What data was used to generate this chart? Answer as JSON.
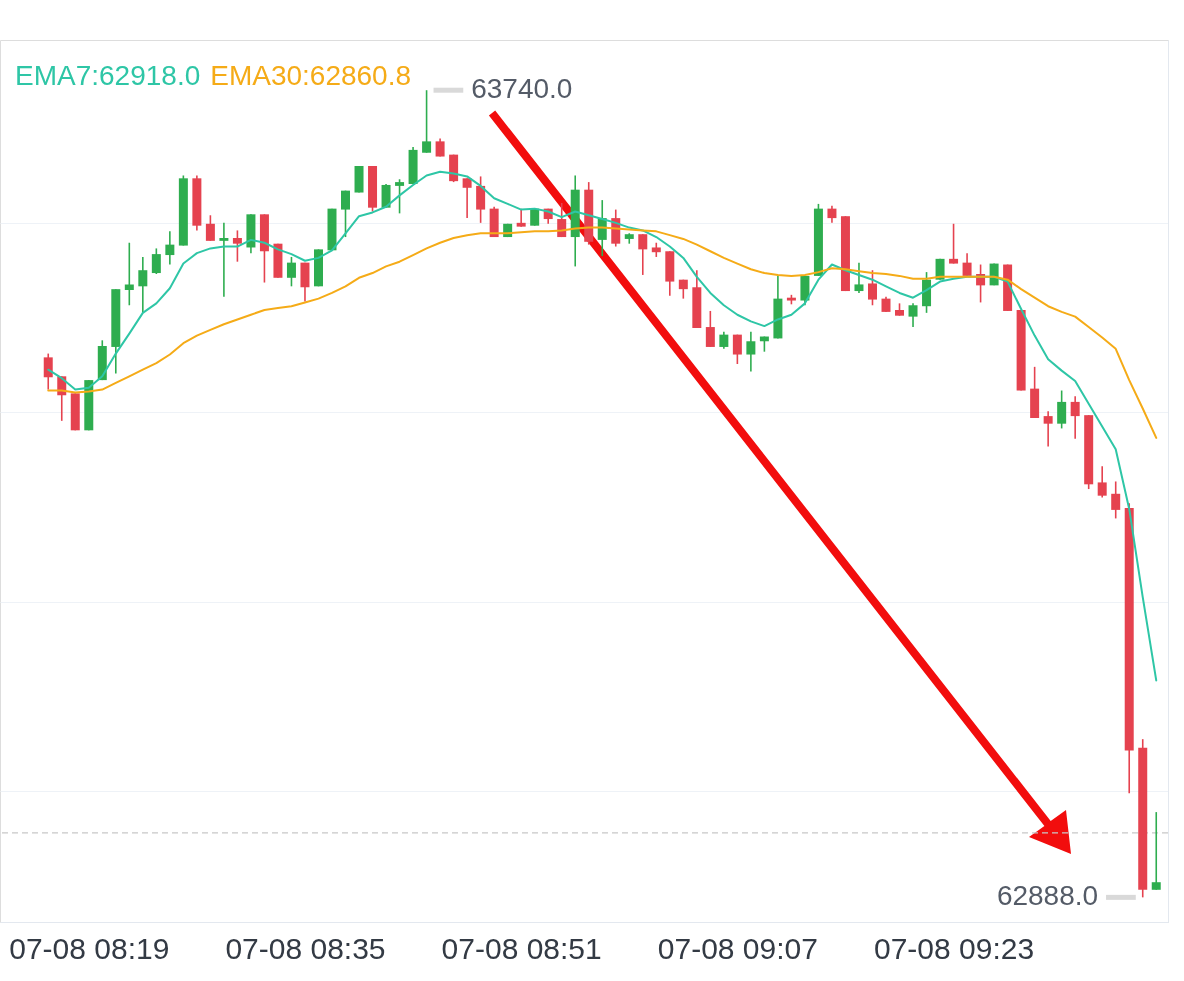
{
  "chart_data": {
    "type": "candlestick",
    "categories": [
      null,
      null,
      null,
      "07-08 08:19",
      null,
      null,
      null,
      null,
      null,
      null,
      null,
      null,
      null,
      null,
      null,
      null,
      null,
      null,
      null,
      "07-08 08:35",
      null,
      null,
      null,
      null,
      null,
      null,
      null,
      null,
      null,
      null,
      null,
      null,
      null,
      null,
      null,
      "07-08 08:51",
      null,
      null,
      null,
      null,
      null,
      null,
      null,
      null,
      null,
      null,
      null,
      null,
      null,
      null,
      null,
      "07-08 09:07",
      null,
      null,
      null,
      null,
      null,
      null,
      null,
      null,
      null,
      null,
      null,
      null,
      null,
      null,
      null,
      "07-08 09:23",
      null,
      null,
      null,
      null,
      null,
      null,
      null,
      null,
      null,
      null,
      null,
      null,
      null,
      null,
      null
    ],
    "ohlc": [
      [
        63458,
        63462,
        63424,
        63437
      ],
      [
        63438,
        63438,
        63391,
        63418
      ],
      [
        63420,
        63420,
        63381,
        63381
      ],
      [
        63381,
        63434,
        63381,
        63434
      ],
      [
        63434,
        63476,
        63434,
        63470
      ],
      [
        63469,
        63530,
        63441,
        63530
      ],
      [
        63529,
        63579,
        63513,
        63535
      ],
      [
        63533,
        63564,
        63505,
        63550
      ],
      [
        63547,
        63573,
        63546,
        63567
      ],
      [
        63566,
        63591,
        63556,
        63577
      ],
      [
        63576,
        63650,
        63576,
        63647
      ],
      [
        63647,
        63650,
        63592,
        63597
      ],
      [
        63599,
        63608,
        63581,
        63581
      ],
      [
        63581,
        63600,
        63522,
        63584
      ],
      [
        63584,
        63592,
        63559,
        63578
      ],
      [
        63574,
        63609,
        63568,
        63609
      ],
      [
        63609,
        63609,
        63537,
        63570
      ],
      [
        63578,
        63578,
        63542,
        63542
      ],
      [
        63542,
        63564,
        63533,
        63558
      ],
      [
        63558,
        63558,
        63517,
        63532
      ],
      [
        63533,
        63572,
        63533,
        63572
      ],
      [
        63571,
        63615,
        63571,
        63615
      ],
      [
        63614,
        63634,
        63585,
        63634
      ],
      [
        63632,
        63660,
        63632,
        63660
      ],
      [
        63660,
        63660,
        63612,
        63616
      ],
      [
        63616,
        63641,
        63616,
        63640
      ],
      [
        63639,
        63646,
        63610,
        63643
      ],
      [
        63641,
        63680,
        63641,
        63677
      ],
      [
        63674,
        63740,
        63674,
        63686
      ],
      [
        63686,
        63689,
        63670,
        63670
      ],
      [
        63672,
        63672,
        63643,
        63644
      ],
      [
        63647,
        63647,
        63605,
        63637
      ],
      [
        63639,
        63649,
        63600,
        63614
      ],
      [
        63615,
        63617,
        63585,
        63585
      ],
      [
        63585,
        63599,
        63585,
        63599
      ],
      [
        63600,
        63615,
        63596,
        63596
      ],
      [
        63597,
        63615,
        63597,
        63615
      ],
      [
        63615,
        63615,
        63599,
        63604
      ],
      [
        63604,
        63621,
        63585,
        63585
      ],
      [
        63585,
        63650,
        63554,
        63635
      ],
      [
        63635,
        63643,
        63577,
        63580
      ],
      [
        63582,
        63624,
        63565,
        63605
      ],
      [
        63605,
        63614,
        63575,
        63578
      ],
      [
        63583,
        63589,
        63578,
        63588
      ],
      [
        63588,
        63588,
        63545,
        63572
      ],
      [
        63574,
        63579,
        63564,
        63569
      ],
      [
        63570,
        63570,
        63523,
        63538
      ],
      [
        63540,
        63540,
        63520,
        63530
      ],
      [
        63532,
        63550,
        63489,
        63489
      ],
      [
        63490,
        63507,
        63469,
        63469
      ],
      [
        63469,
        63485,
        63467,
        63482
      ],
      [
        63482,
        63482,
        63451,
        63461
      ],
      [
        63461,
        63485,
        63443,
        63475
      ],
      [
        63475,
        63480,
        63464,
        63480
      ],
      [
        63478,
        63544,
        63478,
        63520
      ],
      [
        63521,
        63524,
        63514,
        63518
      ],
      [
        63518,
        63544,
        63513,
        63544
      ],
      [
        63544,
        63620,
        63544,
        63615
      ],
      [
        63615,
        63618,
        63600,
        63605
      ],
      [
        63607,
        63607,
        63528,
        63528
      ],
      [
        63528,
        63558,
        63526,
        63535
      ],
      [
        63536,
        63550,
        63513,
        63519
      ],
      [
        63520,
        63522,
        63506,
        63506
      ],
      [
        63508,
        63515,
        63502,
        63502
      ],
      [
        63501,
        63515,
        63490,
        63513
      ],
      [
        63512,
        63548,
        63505,
        63540
      ],
      [
        63540,
        63562,
        63540,
        63562
      ],
      [
        63562,
        63599,
        63557,
        63557
      ],
      [
        63558,
        63568,
        63544,
        63544
      ],
      [
        63546,
        63556,
        63516,
        63534
      ],
      [
        63534,
        63557,
        63534,
        63557
      ],
      [
        63556,
        63556,
        63507,
        63507
      ],
      [
        63508,
        63508,
        63423,
        63423
      ],
      [
        63425,
        63448,
        63394,
        63394
      ],
      [
        63396,
        63401,
        63364,
        63388
      ],
      [
        63388,
        63423,
        63383,
        63411
      ],
      [
        63411,
        63417,
        63372,
        63396
      ],
      [
        63397,
        63397,
        63319,
        63324
      ],
      [
        63326,
        63343,
        63310,
        63312
      ],
      [
        63314,
        63327,
        63288,
        63297
      ],
      [
        63299,
        63304,
        62998,
        63043
      ],
      [
        63046,
        63055,
        62888,
        62896
      ],
      [
        62896,
        62978,
        62896,
        62904
      ]
    ],
    "colors": [
      "#e5424f",
      "#e5424f",
      "#e5424f",
      "#2ead4f",
      "#2ead4f",
      "#2ead4f",
      "#2ead4f",
      "#2ead4f",
      "#2ead4f",
      "#2ead4f",
      "#2ead4f",
      "#e5424f",
      "#e5424f",
      "#2ead4f",
      "#e5424f",
      "#2ead4f",
      "#e5424f",
      "#e5424f",
      "#2ead4f",
      "#e5424f",
      "#2ead4f",
      "#2ead4f",
      "#2ead4f",
      "#2ead4f",
      "#e5424f",
      "#2ead4f",
      "#2ead4f",
      "#2ead4f",
      "#2ead4f",
      "#e5424f",
      "#e5424f",
      "#e5424f",
      "#e5424f",
      "#e5424f",
      "#2ead4f",
      "#e5424f",
      "#2ead4f",
      "#e5424f",
      "#e5424f",
      "#2ead4f",
      "#e5424f",
      "#2ead4f",
      "#e5424f",
      "#2ead4f",
      "#e5424f",
      "#e5424f",
      "#e5424f",
      "#e5424f",
      "#e5424f",
      "#e5424f",
      "#2ead4f",
      "#e5424f",
      "#2ead4f",
      "#2ead4f",
      "#2ead4f",
      "#e5424f",
      "#2ead4f",
      "#2ead4f",
      "#e5424f",
      "#e5424f",
      "#2ead4f",
      "#e5424f",
      "#e5424f",
      "#e5424f",
      "#2ead4f",
      "#2ead4f",
      "#2ead4f",
      "#e5424f",
      "#e5424f",
      "#e5424f",
      "#2ead4f",
      "#e5424f",
      "#e5424f",
      "#e5424f",
      "#e5424f",
      "#2ead4f",
      "#e5424f",
      "#e5424f",
      "#e5424f",
      "#e5424f",
      "#e5424f",
      "#e5424f",
      "#2ead4f"
    ],
    "series": [
      {
        "name": "EMA7:62918.0",
        "type": "line",
        "color": "#2ec6a6",
        "values": [
          63445,
          63436,
          63424,
          63426,
          63438,
          63462,
          63483,
          63505,
          63515,
          63531,
          63557,
          63568,
          63573,
          63575,
          63575,
          63582,
          63579,
          63572,
          63567,
          63560,
          63563,
          63571,
          63589,
          63607,
          63611,
          63617,
          63629,
          63640,
          63650,
          63654,
          63652,
          63649,
          63639,
          63626,
          63620,
          63614,
          63615,
          63612,
          63606,
          63612,
          63608,
          63604,
          63600,
          63595,
          63592,
          63585,
          63575,
          63563,
          63543,
          63526,
          63513,
          63503,
          63496,
          63491,
          63498,
          63503,
          63515,
          63540,
          63556,
          63550,
          63545,
          63540,
          63533,
          63526,
          63521,
          63529,
          63538,
          63541,
          63543,
          63543,
          63543,
          63538,
          63509,
          63481,
          63456,
          63444,
          63433,
          63409,
          63385,
          63361,
          63298,
          63205,
          63117
        ]
      },
      {
        "name": "EMA30:62860.8",
        "type": "line",
        "color": "#f5ab17",
        "values": [
          63423,
          63423,
          63421,
          63422,
          63424,
          63431,
          63438,
          63445,
          63452,
          63461,
          63473,
          63481,
          63487,
          63493,
          63498,
          63503,
          63508,
          63510,
          63512,
          63516,
          63520,
          63526,
          63533,
          63542,
          63547,
          63554,
          63559,
          63566,
          63573,
          63579,
          63584,
          63587,
          63589,
          63589,
          63589,
          63590,
          63591,
          63591,
          63592,
          63594,
          63595,
          63595,
          63594,
          63593,
          63592,
          63591,
          63587,
          63583,
          63577,
          63570,
          63563,
          63557,
          63551,
          63547,
          63545,
          63544,
          63545,
          63548,
          63552,
          63551,
          63549,
          63547,
          63546,
          63544,
          63541,
          63541,
          63543,
          63543,
          63543,
          63543,
          63543,
          63540,
          63530,
          63521,
          63512,
          63506,
          63501,
          63490,
          63479,
          63467,
          63434,
          63404,
          63373
        ]
      }
    ],
    "ylim": [
      62862,
      63793
    ],
    "yticks": [
      {
        "value": 63000,
        "label": null
      },
      {
        "value": 63200,
        "label": null
      },
      {
        "value": 63400,
        "label": null
      },
      {
        "value": 63600,
        "label": null
      }
    ],
    "tick_labels": "x",
    "grid": "y",
    "legend": "top left",
    "annotations": [
      "63740.0",
      "62888.0"
    ],
    "ref_lines": [
      {
        "axis": "y",
        "value": 62956,
        "color": "#c8c8c8",
        "line_style": "dashed"
      }
    ]
  }
}
